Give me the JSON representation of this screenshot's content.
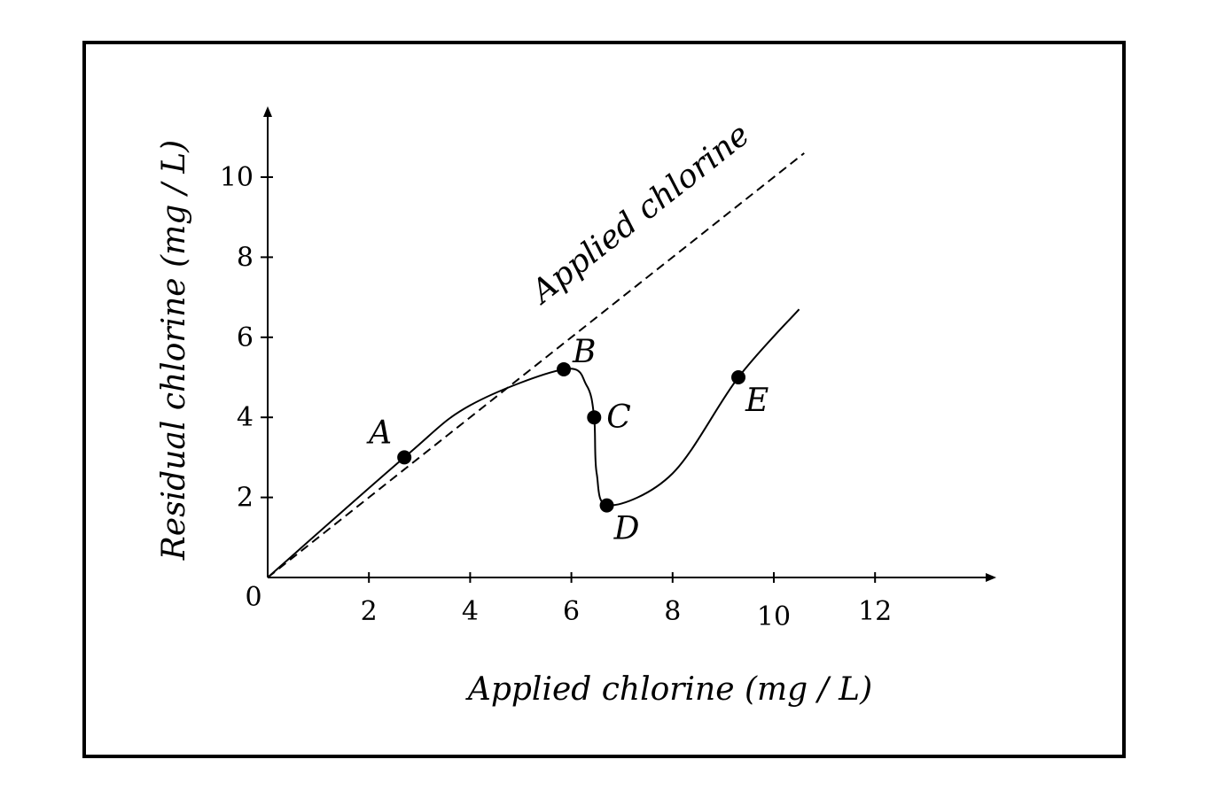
{
  "chart_data": {
    "type": "line",
    "title": "",
    "xlabel": "Applied chlorine (mg / L)",
    "ylabel": "Residual chlorine (mg / L)",
    "xlim": [
      0,
      14
    ],
    "ylim": [
      0,
      11.5
    ],
    "x_ticks": [
      2,
      4,
      6,
      8,
      10,
      12
    ],
    "y_ticks": [
      2,
      4,
      6,
      8,
      10
    ],
    "origin_label": "0",
    "grid": false,
    "legend": "none",
    "series": [
      {
        "name": "Applied chlorine",
        "style": "dashed",
        "x": [
          0,
          10.6
        ],
        "y": [
          0,
          10.6
        ]
      },
      {
        "style": "solid",
        "x": [
          0,
          2.7,
          4,
          5.85,
          6.3,
          6.45,
          6.5,
          6.75,
          8,
          9.3,
          10.5
        ],
        "y": [
          0,
          3.0,
          4.3,
          5.2,
          4.8,
          4.0,
          2.6,
          1.8,
          2.6,
          5.0,
          6.7
        ]
      }
    ],
    "annotations": [
      {
        "label": "A",
        "x": 2.7,
        "y": 3.0
      },
      {
        "label": "B",
        "x": 5.85,
        "y": 5.2
      },
      {
        "label": "C",
        "x": 6.45,
        "y": 4.0
      },
      {
        "label": "D",
        "x": 6.7,
        "y": 1.8
      },
      {
        "label": "E",
        "x": 9.3,
        "y": 5.0
      }
    ]
  }
}
